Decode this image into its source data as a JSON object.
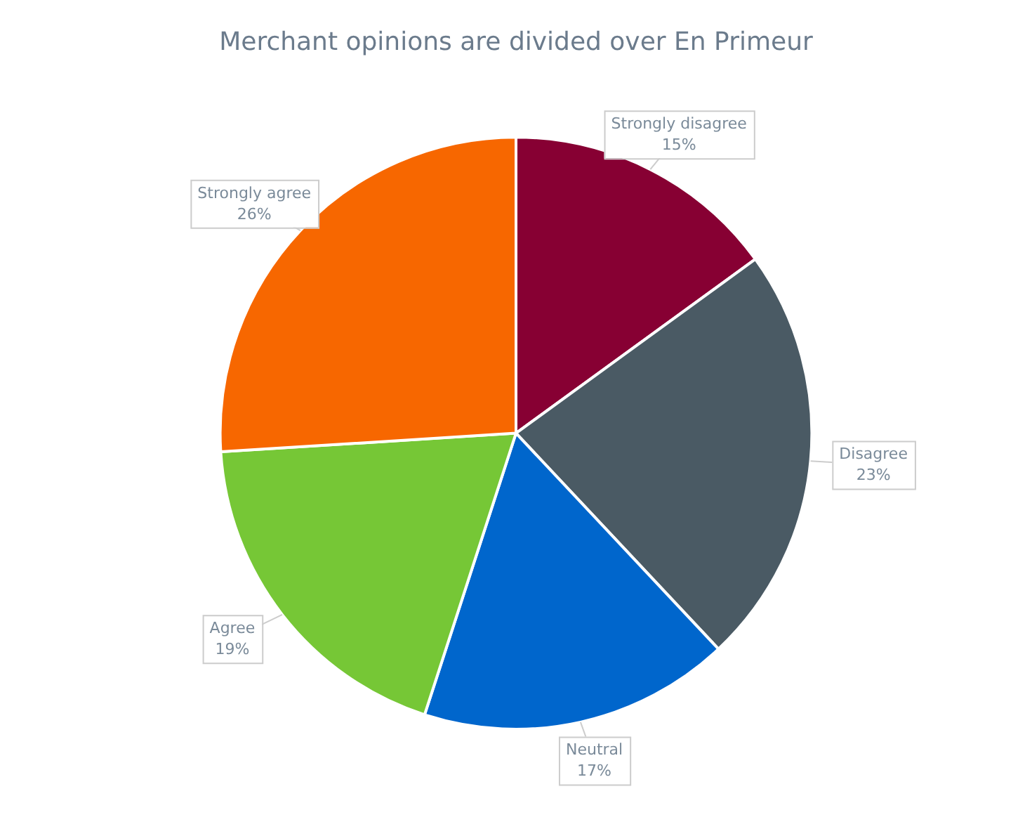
{
  "chart_data": {
    "type": "pie",
    "title": "Merchant opinions are divided over En Primeur",
    "categories": [
      "Strongly disagree",
      "Disagree",
      "Neutral",
      "Agree",
      "Strongly agree"
    ],
    "values": [
      15,
      23,
      17,
      19,
      26
    ],
    "value_labels": [
      "15%",
      "23%",
      "17%",
      "19%",
      "26%"
    ],
    "colors": [
      "#870033",
      "#4a5a64",
      "#0066cc",
      "#76c736",
      "#f76700"
    ],
    "legend": false
  }
}
